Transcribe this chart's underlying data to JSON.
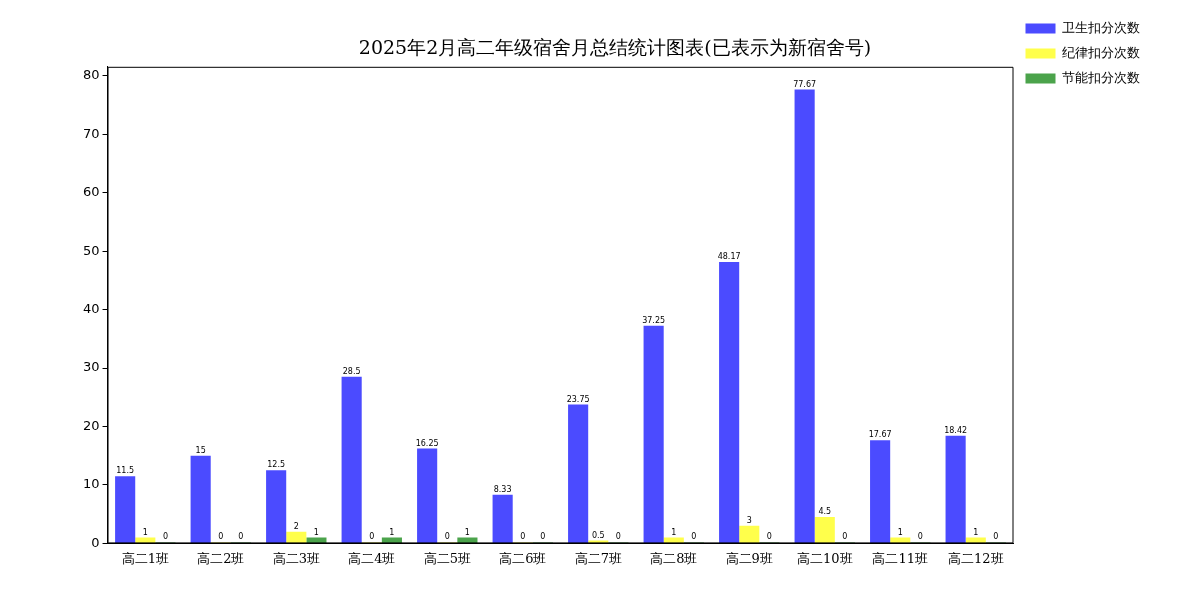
{
  "chart_data": {
    "type": "bar",
    "title": "2025年2月高二年级宿舍月总结统计图表(已表示为新宿舍号)",
    "categories": [
      "高二1班",
      "高二2班",
      "高二3班",
      "高二4班",
      "高二5班",
      "高二6班",
      "高二7班",
      "高二8班",
      "高二9班",
      "高二10班",
      "高二11班",
      "高二12班"
    ],
    "series": [
      {
        "name": "卫生扣分次数",
        "color": "#4b4bff",
        "values": [
          11.5,
          15,
          12.5,
          28.5,
          16.25,
          8.33,
          23.75,
          37.25,
          48.17,
          77.67,
          17.67,
          18.42
        ]
      },
      {
        "name": "纪律扣分次数",
        "color": "#ffff4b",
        "values": [
          1,
          0,
          2,
          0,
          0,
          0,
          0.5,
          1,
          3,
          4.5,
          1,
          1
        ]
      },
      {
        "name": "节能扣分次数",
        "color": "#4ba34b",
        "values": [
          0,
          0,
          1,
          1,
          1,
          0,
          0,
          0,
          0,
          0,
          0,
          0
        ]
      }
    ],
    "ylim": [
      0,
      81.55
    ],
    "yticks": [
      0,
      10,
      20,
      30,
      40,
      50,
      60,
      70,
      80
    ],
    "grid": false,
    "legend": "top right",
    "data_labels": true
  }
}
